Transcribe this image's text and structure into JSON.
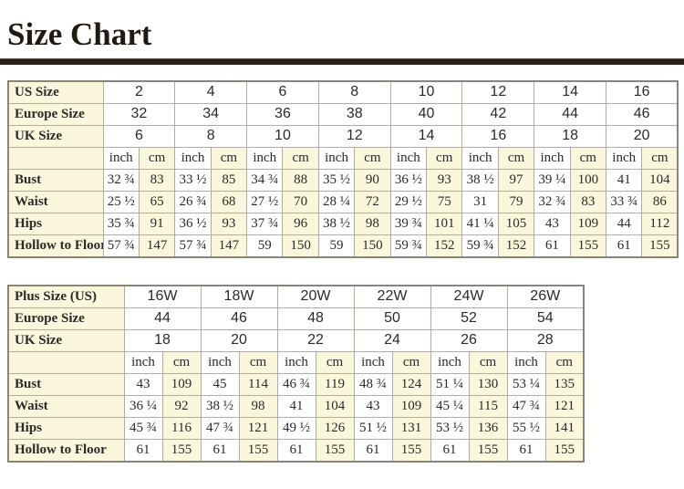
{
  "title": "Size Chart",
  "units": [
    "inch",
    "cm"
  ],
  "standard_table": {
    "size_rows": [
      {
        "label": "US Size",
        "values": [
          "2",
          "4",
          "6",
          "8",
          "10",
          "12",
          "14",
          "16"
        ]
      },
      {
        "label": "Europe Size",
        "values": [
          "32",
          "34",
          "36",
          "38",
          "40",
          "42",
          "44",
          "46"
        ]
      },
      {
        "label": "UK Size",
        "values": [
          "6",
          "8",
          "10",
          "12",
          "14",
          "16",
          "18",
          "20"
        ]
      }
    ],
    "measurement_rows": [
      {
        "label": "Bust",
        "values": [
          "32 ¾",
          "83",
          "33 ½",
          "85",
          "34 ¾",
          "88",
          "35 ½",
          "90",
          "36 ½",
          "93",
          "38 ½",
          "97",
          "39 ¼",
          "100",
          "41",
          "104"
        ]
      },
      {
        "label": "Waist",
        "values": [
          "25 ½",
          "65",
          "26 ¾",
          "68",
          "27 ½",
          "70",
          "28 ¼",
          "72",
          "29 ½",
          "75",
          "31",
          "79",
          "32 ¾",
          "83",
          "33 ¾",
          "86"
        ]
      },
      {
        "label": "Hips",
        "values": [
          "35 ¾",
          "91",
          "36 ½",
          "93",
          "37 ¾",
          "96",
          "38 ½",
          "98",
          "39 ¾",
          "101",
          "41 ¼",
          "105",
          "43",
          "109",
          "44",
          "112"
        ]
      },
      {
        "label": "Hollow to Floor",
        "values": [
          "57 ¾",
          "147",
          "57 ¾",
          "147",
          "59",
          "150",
          "59",
          "150",
          "59 ¾",
          "152",
          "59 ¾",
          "152",
          "61",
          "155",
          "61",
          "155"
        ]
      }
    ]
  },
  "plus_table": {
    "size_rows": [
      {
        "label": "Plus Size (US)",
        "values": [
          "16W",
          "18W",
          "20W",
          "22W",
          "24W",
          "26W"
        ]
      },
      {
        "label": "Europe Size",
        "values": [
          "44",
          "46",
          "48",
          "50",
          "52",
          "54"
        ]
      },
      {
        "label": "UK Size",
        "values": [
          "18",
          "20",
          "22",
          "24",
          "26",
          "28"
        ]
      }
    ],
    "measurement_rows": [
      {
        "label": "Bust",
        "values": [
          "43",
          "109",
          "45",
          "114",
          "46 ¾",
          "119",
          "48 ¾",
          "124",
          "51 ¼",
          "130",
          "53 ¼",
          "135"
        ]
      },
      {
        "label": "Waist",
        "values": [
          "36 ¼",
          "92",
          "38 ½",
          "98",
          "41",
          "104",
          "43",
          "109",
          "45 ¼",
          "115",
          "47 ¾",
          "121"
        ]
      },
      {
        "label": "Hips",
        "values": [
          "45 ¾",
          "116",
          "47 ¾",
          "121",
          "49 ½",
          "126",
          "51 ½",
          "131",
          "53 ½",
          "136",
          "55 ½",
          "141"
        ]
      },
      {
        "label": "Hollow to Floor",
        "values": [
          "61",
          "155",
          "61",
          "155",
          "61",
          "155",
          "61",
          "155",
          "61",
          "155",
          "61",
          "155"
        ]
      }
    ]
  }
}
